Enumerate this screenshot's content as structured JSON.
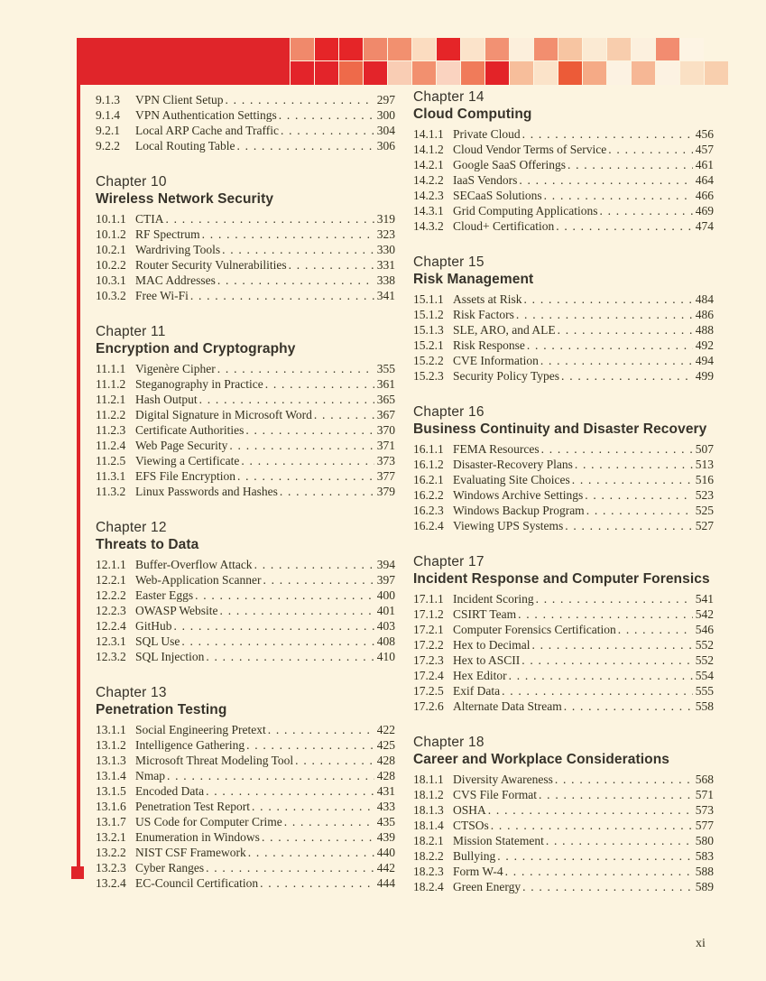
{
  "colors": {
    "accent_red": "#E0252A",
    "paper_cream": "#FCF4E0",
    "ink": "#35311F"
  },
  "header": {
    "mosaic_row1": [
      "#F0896B",
      "#E52528",
      "#E52528",
      "#F0896B",
      "#F2906F",
      "#FBDCC0",
      "#E52528",
      "#FBE3CA",
      "#F29173",
      "#FCEFDC",
      "#F28E6F",
      "#F7C5A2",
      "#FBEAD3",
      "#F8CDAD",
      "#FCF0DE",
      "#F28C70",
      "#FDF4E4"
    ],
    "mosaic_row2": [
      "#E3242A",
      "#E3242A",
      "#EE6A4A",
      "#E3242A",
      "#F9CDB4",
      "#F2906F",
      "#FAD3C0",
      "#F07B5A",
      "#E32328",
      "#F7BE9B",
      "#FBE3C9",
      "#EC5B38",
      "#F5AA86",
      "#FCF2E2",
      "#F6B795",
      "#FCF2E2",
      "#FAE0C4",
      "#F8CFAE"
    ]
  },
  "page": {
    "folio": "xi"
  },
  "toc": {
    "columns": [
      {
        "sections": [
          {
            "entries": [
              {
                "num": "9.1.3",
                "label": "VPN Client Setup",
                "page": "297"
              },
              {
                "num": "9.1.4",
                "label": "VPN Authentication Settings",
                "page": "300"
              },
              {
                "num": "9.2.1",
                "label": "Local ARP Cache and Traffic",
                "page": "304"
              },
              {
                "num": "9.2.2",
                "label": "Local Routing Table",
                "page": "306"
              }
            ]
          },
          {
            "chapter": "Chapter 10",
            "title": "Wireless Network Security",
            "entries": [
              {
                "num": "10.1.1",
                "label": "CTIA",
                "page": "319"
              },
              {
                "num": "10.1.2",
                "label": "RF Spectrum",
                "page": "323"
              },
              {
                "num": "10.2.1",
                "label": "Wardriving Tools",
                "page": "330"
              },
              {
                "num": "10.2.2",
                "label": "Router Security Vulnerabilities",
                "page": "331"
              },
              {
                "num": "10.3.1",
                "label": "MAC Addresses",
                "page": "338"
              },
              {
                "num": "10.3.2",
                "label": "Free Wi-Fi",
                "page": "341"
              }
            ]
          },
          {
            "chapter": "Chapter 11",
            "title": "Encryption and Cryptography",
            "entries": [
              {
                "num": "11.1.1",
                "label": "Vigenère Cipher",
                "page": "355"
              },
              {
                "num": "11.1.2",
                "label": "Steganography in Practice",
                "page": "361"
              },
              {
                "num": "11.2.1",
                "label": "Hash Output",
                "page": "365"
              },
              {
                "num": "11.2.2",
                "label": "Digital Signature in Microsoft Word",
                "page": "367"
              },
              {
                "num": "11.2.3",
                "label": "Certificate Authorities",
                "page": "370"
              },
              {
                "num": "11.2.4",
                "label": "Web Page Security",
                "page": "371"
              },
              {
                "num": "11.2.5",
                "label": "Viewing a Certificate",
                "page": "373"
              },
              {
                "num": "11.3.1",
                "label": "EFS File Encryption",
                "page": "377"
              },
              {
                "num": "11.3.2",
                "label": "Linux Passwords and Hashes",
                "page": "379"
              }
            ]
          },
          {
            "chapter": "Chapter 12",
            "title": "Threats to Data",
            "entries": [
              {
                "num": "12.1.1",
                "label": "Buffer-Overflow Attack",
                "page": "394"
              },
              {
                "num": "12.2.1",
                "label": "Web-Application Scanner",
                "page": "397"
              },
              {
                "num": "12.2.2",
                "label": "Easter Eggs",
                "page": "400"
              },
              {
                "num": "12.2.3",
                "label": "OWASP Website",
                "page": "401"
              },
              {
                "num": "12.2.4",
                "label": "GitHub",
                "page": "403"
              },
              {
                "num": "12.3.1",
                "label": "SQL Use",
                "page": "408"
              },
              {
                "num": "12.3.2",
                "label": "SQL Injection",
                "page": "410"
              }
            ]
          },
          {
            "chapter": "Chapter 13",
            "title": "Penetration Testing",
            "entries": [
              {
                "num": "13.1.1",
                "label": "Social Engineering Pretext",
                "page": "422"
              },
              {
                "num": "13.1.2",
                "label": "Intelligence Gathering",
                "page": "425"
              },
              {
                "num": "13.1.3",
                "label": "Microsoft Threat Modeling Tool",
                "page": "428"
              },
              {
                "num": "13.1.4",
                "label": "Nmap",
                "page": "428"
              },
              {
                "num": "13.1.5",
                "label": "Encoded Data",
                "page": "431"
              },
              {
                "num": "13.1.6",
                "label": "Penetration Test Report",
                "page": "433"
              },
              {
                "num": "13.1.7",
                "label": "US Code for Computer Crime",
                "page": "435"
              },
              {
                "num": "13.2.1",
                "label": "Enumeration in Windows",
                "page": "439"
              },
              {
                "num": "13.2.2",
                "label": "NIST CSF Framework",
                "page": "440"
              },
              {
                "num": "13.2.3",
                "label": "Cyber Ranges",
                "page": "442"
              },
              {
                "num": "13.2.4",
                "label": "EC-Council Certification",
                "page": "444"
              }
            ]
          }
        ]
      },
      {
        "sections": [
          {
            "chapter": "Chapter 14",
            "title": "Cloud Computing",
            "entries": [
              {
                "num": "14.1.1",
                "label": "Private Cloud",
                "page": "456"
              },
              {
                "num": "14.1.2",
                "label": "Cloud Vendor Terms of Service",
                "page": "457"
              },
              {
                "num": "14.2.1",
                "label": "Google SaaS Offerings",
                "page": "461"
              },
              {
                "num": "14.2.2",
                "label": "IaaS Vendors",
                "page": "464"
              },
              {
                "num": "14.2.3",
                "label": "SECaaS Solutions",
                "page": "466"
              },
              {
                "num": "14.3.1",
                "label": "Grid Computing Applications",
                "page": "469"
              },
              {
                "num": "14.3.2",
                "label": "Cloud+ Certification",
                "page": "474"
              }
            ]
          },
          {
            "chapter": "Chapter 15",
            "title": "Risk Management",
            "entries": [
              {
                "num": "15.1.1",
                "label": "Assets at Risk",
                "page": "484"
              },
              {
                "num": "15.1.2",
                "label": "Risk Factors",
                "page": "486"
              },
              {
                "num": "15.1.3",
                "label": "SLE, ARO, and ALE",
                "page": "488"
              },
              {
                "num": "15.2.1",
                "label": "Risk Response",
                "page": "492"
              },
              {
                "num": "15.2.2",
                "label": "CVE Information",
                "page": "494"
              },
              {
                "num": "15.2.3",
                "label": "Security Policy Types",
                "page": "499"
              }
            ]
          },
          {
            "chapter": "Chapter 16",
            "title": "Business Continuity and Disaster Recovery",
            "entries": [
              {
                "num": "16.1.1",
                "label": "FEMA Resources",
                "page": "507"
              },
              {
                "num": "16.1.2",
                "label": "Disaster-Recovery Plans",
                "page": "513"
              },
              {
                "num": "16.2.1",
                "label": "Evaluating Site Choices",
                "page": "516"
              },
              {
                "num": "16.2.2",
                "label": "Windows Archive Settings",
                "page": "523"
              },
              {
                "num": "16.2.3",
                "label": "Windows Backup Program",
                "page": "525"
              },
              {
                "num": "16.2.4",
                "label": "Viewing UPS Systems",
                "page": "527"
              }
            ]
          },
          {
            "chapter": "Chapter 17",
            "title": "Incident Response and Computer Forensics",
            "entries": [
              {
                "num": "17.1.1",
                "label": "Incident Scoring",
                "page": "541"
              },
              {
                "num": "17.1.2",
                "label": "CSIRT Team",
                "page": "542"
              },
              {
                "num": "17.2.1",
                "label": "Computer Forensics Certification",
                "page": "546"
              },
              {
                "num": "17.2.2",
                "label": "Hex to Decimal",
                "page": "552"
              },
              {
                "num": "17.2.3",
                "label": "Hex to ASCII",
                "page": "552"
              },
              {
                "num": "17.2.4",
                "label": "Hex Editor",
                "page": "554"
              },
              {
                "num": "17.2.5",
                "label": "Exif Data",
                "page": "555"
              },
              {
                "num": "17.2.6",
                "label": "Alternate Data Stream",
                "page": "558"
              }
            ]
          },
          {
            "chapter": "Chapter 18",
            "title": "Career and Workplace Considerations",
            "entries": [
              {
                "num": "18.1.1",
                "label": "Diversity Awareness",
                "page": "568"
              },
              {
                "num": "18.1.2",
                "label": "CVS File Format",
                "page": "571"
              },
              {
                "num": "18.1.3",
                "label": "OSHA",
                "page": "573"
              },
              {
                "num": "18.1.4",
                "label": "CTSOs",
                "page": "577"
              },
              {
                "num": "18.2.1",
                "label": "Mission Statement",
                "page": "580"
              },
              {
                "num": "18.2.2",
                "label": "Bullying",
                "page": "583"
              },
              {
                "num": "18.2.3",
                "label": "Form W-4",
                "page": "588"
              },
              {
                "num": "18.2.4",
                "label": "Green Energy",
                "page": "589"
              }
            ]
          }
        ]
      }
    ]
  }
}
